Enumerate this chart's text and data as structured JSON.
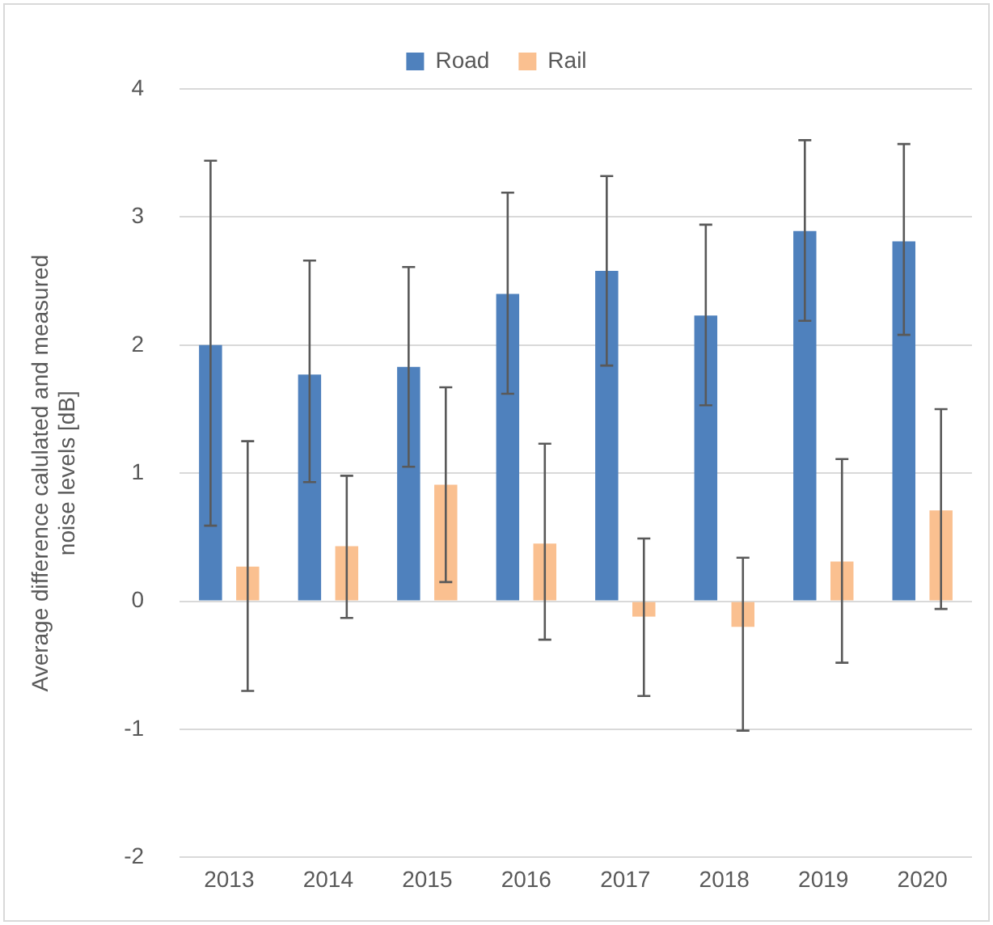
{
  "chart_data": {
    "type": "bar",
    "ylabel": "Average difference calulated and measured noise levels [dB]",
    "categories": [
      "2013",
      "2014",
      "2015",
      "2016",
      "2017",
      "2018",
      "2019",
      "2020"
    ],
    "series": [
      {
        "name": "Road",
        "color": "#4f81bd",
        "values": [
          2.0,
          1.77,
          1.83,
          2.4,
          2.58,
          2.23,
          2.89,
          2.81
        ],
        "errors": [
          [
            0.59,
            3.44
          ],
          [
            0.93,
            2.66
          ],
          [
            1.05,
            2.61
          ],
          [
            1.62,
            3.19
          ],
          [
            1.84,
            3.32
          ],
          [
            1.53,
            2.94
          ],
          [
            2.19,
            3.6
          ],
          [
            2.08,
            3.57
          ]
        ]
      },
      {
        "name": "Rail",
        "color": "#fac090",
        "values": [
          0.27,
          0.43,
          0.91,
          0.45,
          -0.12,
          -0.2,
          0.31,
          0.71
        ],
        "errors": [
          [
            -0.7,
            1.25
          ],
          [
            -0.13,
            0.98
          ],
          [
            0.15,
            1.67
          ],
          [
            -0.3,
            1.23
          ],
          [
            -0.74,
            0.49
          ],
          [
            -1.01,
            0.34
          ],
          [
            -0.48,
            1.11
          ],
          [
            -0.06,
            1.5
          ]
        ]
      }
    ],
    "ylim": [
      -2,
      4
    ],
    "yticks": [
      -2,
      -1,
      0,
      1,
      2,
      3,
      4
    ],
    "grid": "y",
    "legend": "top"
  }
}
